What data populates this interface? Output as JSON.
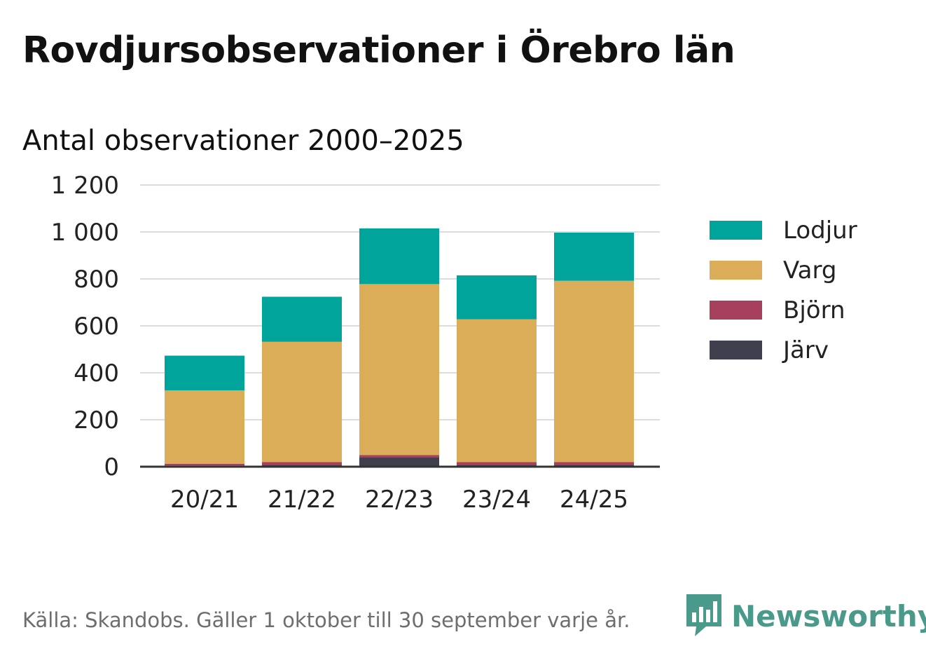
{
  "title": "Rovdjursobservationer i Örebro län",
  "subtitle": "Antal observationer 2000–2025",
  "source": "Källa: Skandobs. Gäller 1 oktober till 30 september varje år.",
  "brand": {
    "name": "Newsworthy",
    "color": "#4a9a8c",
    "icon": "chart-speech-bubble-icon"
  },
  "chart_data": {
    "type": "bar",
    "stacked": true,
    "title": "Rovdjursobservationer i Örebro län",
    "subtitle": "Antal observationer 2000–2025",
    "xlabel": "",
    "ylabel": "",
    "categories": [
      "20/21",
      "21/22",
      "22/23",
      "23/24",
      "24/25"
    ],
    "ylim": [
      0,
      1200
    ],
    "yticks": [
      0,
      200,
      400,
      600,
      800,
      1000,
      1200
    ],
    "ytick_labels": [
      "0",
      "200",
      "400",
      "600",
      "800",
      "1 000",
      "1 200"
    ],
    "grid": true,
    "legend_position": "right",
    "series": [
      {
        "name": "Järv",
        "color": "#3f3f4e",
        "values": [
          5,
          8,
          40,
          8,
          8
        ]
      },
      {
        "name": "Björn",
        "color": "#a6405d",
        "values": [
          7,
          12,
          10,
          12,
          12
        ]
      },
      {
        "name": "Varg",
        "color": "#dbad58",
        "values": [
          313,
          512,
          728,
          608,
          772
        ]
      },
      {
        "name": "Lodjur",
        "color": "#00a49a",
        "values": [
          148,
          192,
          237,
          187,
          205
        ]
      }
    ],
    "legend_order": [
      "Lodjur",
      "Varg",
      "Björn",
      "Järv"
    ]
  }
}
